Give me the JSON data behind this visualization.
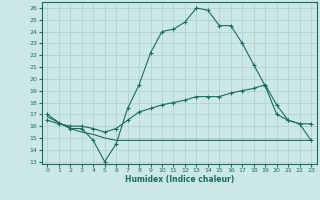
{
  "xlabel": "Humidex (Indice chaleur)",
  "bg_color": "#cce8e6",
  "grid_color": "#aacfcc",
  "line_color": "#1a6b60",
  "xlim": [
    -0.5,
    23.5
  ],
  "ylim": [
    12.8,
    26.5
  ],
  "xticks": [
    0,
    1,
    2,
    3,
    4,
    5,
    6,
    7,
    8,
    9,
    10,
    11,
    12,
    13,
    14,
    15,
    16,
    17,
    18,
    19,
    20,
    21,
    22,
    23
  ],
  "yticks": [
    13,
    14,
    15,
    16,
    17,
    18,
    19,
    20,
    21,
    22,
    23,
    24,
    25,
    26
  ],
  "curve1_x": [
    0,
    1,
    2,
    3,
    4,
    5,
    6,
    7,
    8,
    9,
    10,
    11,
    12,
    13,
    14,
    15,
    16,
    17,
    18,
    19,
    20,
    21,
    22,
    23
  ],
  "curve1_y": [
    17.0,
    16.3,
    15.8,
    15.8,
    14.8,
    13.0,
    14.5,
    17.5,
    19.5,
    22.2,
    24.0,
    24.2,
    24.8,
    26.0,
    25.8,
    24.5,
    24.5,
    23.0,
    21.2,
    19.4,
    17.0,
    16.5,
    16.2,
    16.2
  ],
  "curve2_x": [
    0,
    1,
    2,
    3,
    4,
    5,
    6,
    7,
    8,
    9,
    10,
    11,
    12,
    13,
    14,
    15,
    16,
    17,
    18,
    19,
    20,
    21,
    22,
    23
  ],
  "curve2_y": [
    16.5,
    16.2,
    16.0,
    16.0,
    15.8,
    15.5,
    15.8,
    16.5,
    17.2,
    17.5,
    17.8,
    18.0,
    18.2,
    18.5,
    18.5,
    18.5,
    18.8,
    19.0,
    19.2,
    19.5,
    17.8,
    16.5,
    16.2,
    14.8
  ],
  "curve3_x": [
    0,
    1,
    2,
    3,
    4,
    5,
    6,
    7,
    8,
    9,
    10,
    11,
    12,
    13,
    14,
    15,
    16,
    17,
    18,
    19,
    20,
    21,
    22,
    23
  ],
  "curve3_y": [
    16.8,
    16.3,
    15.8,
    15.5,
    15.3,
    15.0,
    14.8,
    14.8,
    14.8,
    14.8,
    14.8,
    14.8,
    14.8,
    14.8,
    14.8,
    14.8,
    14.8,
    14.8,
    14.8,
    14.8,
    14.8,
    14.8,
    14.8,
    14.8
  ]
}
